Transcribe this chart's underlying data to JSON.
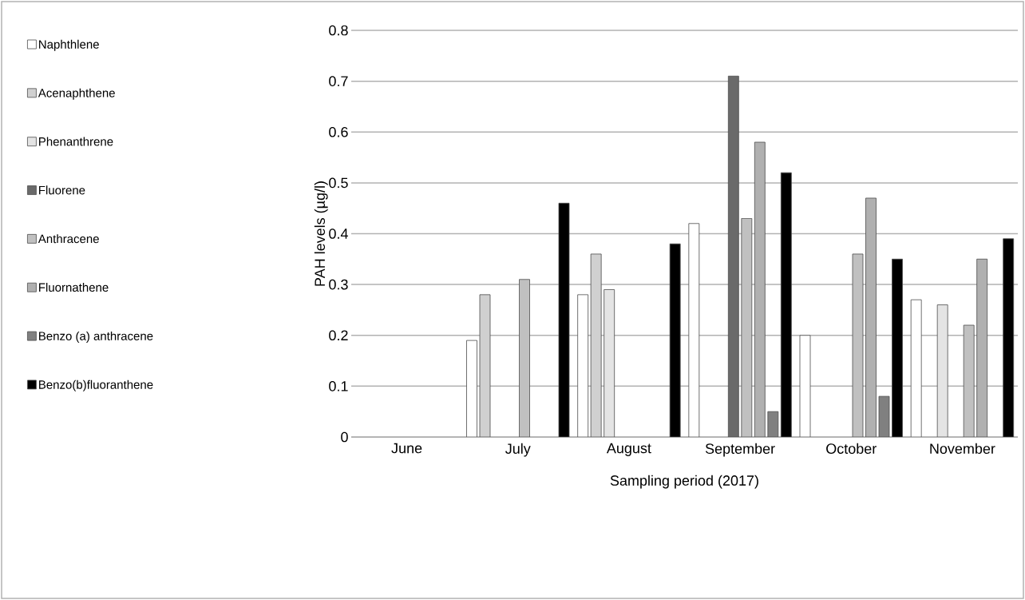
{
  "chart_data": {
    "type": "bar",
    "xlabel": "Sampling period (2017)",
    "ylabel": "PAH levels (µg/l)",
    "categories": [
      "June",
      "July",
      "August",
      "September",
      "October",
      "November"
    ],
    "series": [
      {
        "name": "Naphthlene",
        "color": "#ffffff",
        "values": [
          null,
          0.19,
          0.28,
          0.42,
          0.2,
          0.27
        ]
      },
      {
        "name": "Acenaphthene",
        "color": "#d0d0d0",
        "values": [
          null,
          0.28,
          0.36,
          null,
          null,
          null
        ]
      },
      {
        "name": "Phenanthrene",
        "color": "#e4e4e4",
        "values": [
          null,
          null,
          0.29,
          null,
          null,
          0.26
        ]
      },
      {
        "name": "Fluorene",
        "color": "#6a6a6a",
        "values": [
          null,
          null,
          null,
          0.71,
          null,
          null
        ]
      },
      {
        "name": "Anthracene",
        "color": "#c0c0c0",
        "values": [
          null,
          0.31,
          null,
          0.43,
          0.36,
          0.22
        ]
      },
      {
        "name": "Fluornathene",
        "color": "#b0b0b0",
        "values": [
          null,
          null,
          null,
          0.58,
          0.47,
          0.35
        ]
      },
      {
        "name": "Benzo (a) anthracene",
        "color": "#808080",
        "values": [
          null,
          null,
          null,
          0.05,
          0.08,
          null
        ]
      },
      {
        "name": "Benzo(b)fluoranthene",
        "color": "#000000",
        "values": [
          null,
          0.46,
          0.38,
          0.52,
          0.35,
          0.39
        ]
      }
    ],
    "ylim": [
      0,
      0.8
    ],
    "yticks": [
      0,
      0.1,
      0.2,
      0.3,
      0.4,
      0.5,
      0.6,
      0.7,
      0.8
    ],
    "grid": "y",
    "legend": "left"
  }
}
